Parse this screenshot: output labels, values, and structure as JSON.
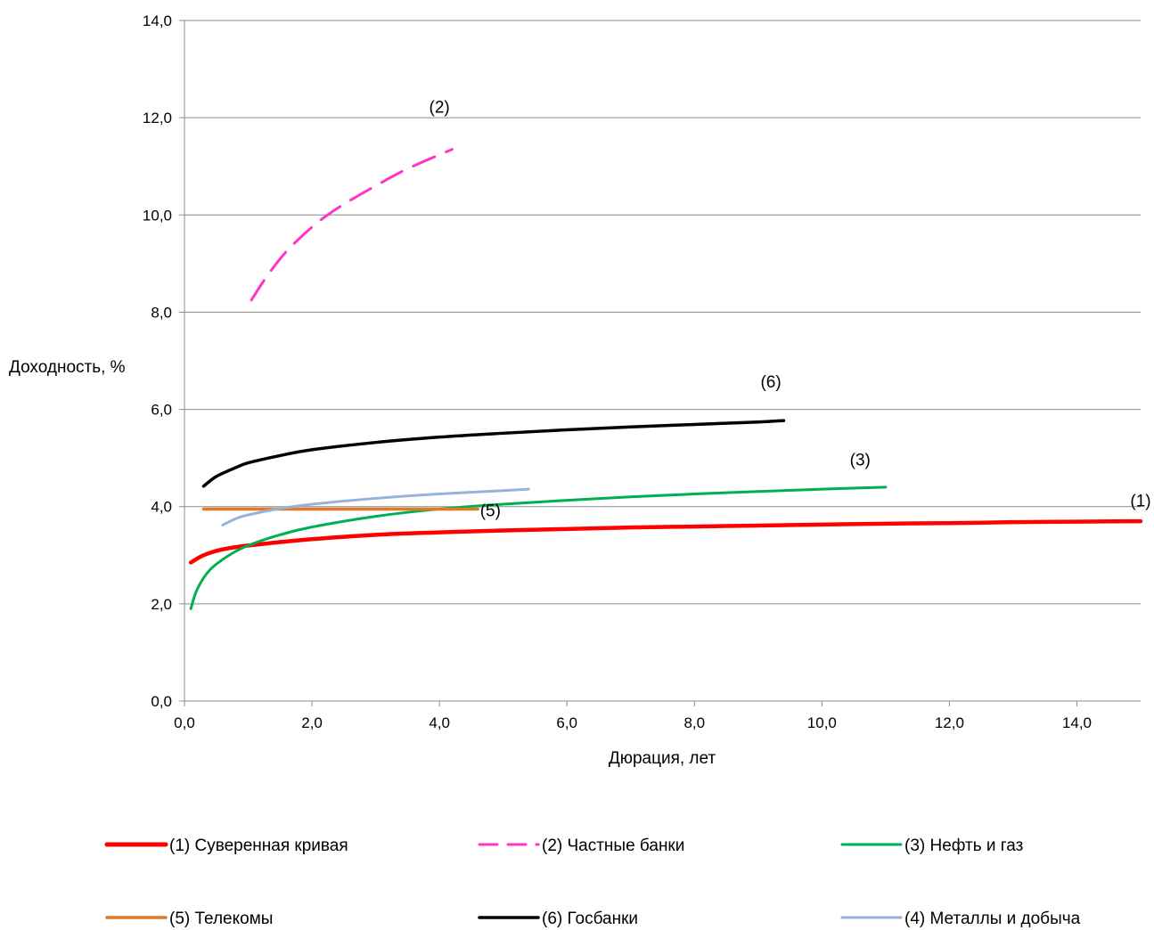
{
  "chart_data": {
    "type": "line",
    "xlabel": "Дюрация, лет",
    "ylabel": "Доходность, %",
    "xlim": [
      0,
      15
    ],
    "ylim": [
      0,
      14
    ],
    "xticks": [
      "0,0",
      "2,0",
      "4,0",
      "6,0",
      "8,0",
      "10,0",
      "12,0",
      "14,0"
    ],
    "yticks": [
      "0,0",
      "2,0",
      "4,0",
      "6,0",
      "8,0",
      "10,0",
      "12,0",
      "14,0"
    ],
    "grid": "horizontal",
    "legend_position": "bottom",
    "series": [
      {
        "name": "(1) Суверенная кривая",
        "color": "#ff0000",
        "dash": "solid",
        "x": [
          0.1,
          0.3,
          0.6,
          1.0,
          1.5,
          2.0,
          3.0,
          4.0,
          5.0,
          6.0,
          7.0,
          8.0,
          9.0,
          10.0,
          11.0,
          12.0,
          13.0,
          14.0,
          15.0
        ],
        "y": [
          2.85,
          3.0,
          3.12,
          3.2,
          3.27,
          3.33,
          3.42,
          3.47,
          3.51,
          3.54,
          3.57,
          3.59,
          3.61,
          3.63,
          3.65,
          3.66,
          3.68,
          3.69,
          3.7
        ],
        "annotation": "(1)"
      },
      {
        "name": "(2) Частные банки",
        "color": "#ff33cc",
        "dash": "dashed",
        "x": [
          1.05,
          1.3,
          1.6,
          2.0,
          2.3,
          2.6,
          3.0,
          3.5,
          4.2
        ],
        "y": [
          8.25,
          8.75,
          9.25,
          9.75,
          10.05,
          10.3,
          10.6,
          10.95,
          11.35
        ],
        "annotation": "(2)"
      },
      {
        "name": "(3) Нефть и газ",
        "color": "#00b050",
        "dash": "solid",
        "x": [
          0.1,
          0.2,
          0.4,
          0.7,
          1.0,
          1.5,
          2.0,
          3.0,
          4.0,
          5.0,
          6.0,
          7.0,
          8.0,
          9.0,
          10.0,
          11.0
        ],
        "y": [
          1.9,
          2.3,
          2.7,
          3.0,
          3.2,
          3.42,
          3.58,
          3.8,
          3.95,
          4.05,
          4.13,
          4.2,
          4.26,
          4.31,
          4.36,
          4.4
        ],
        "annotation": "(3)"
      },
      {
        "name": "(5) Телекомы",
        "color": "#e07a2a",
        "dash": "solid",
        "x": [
          0.3,
          4.6
        ],
        "y": [
          3.95,
          3.95
        ],
        "annotation": "(5)"
      },
      {
        "name": "(6) Госбанки",
        "color": "#000000",
        "dash": "solid",
        "x": [
          0.3,
          0.5,
          0.8,
          1.0,
          1.5,
          2.0,
          3.0,
          4.0,
          5.0,
          6.0,
          7.0,
          8.0,
          9.0,
          9.4
        ],
        "y": [
          4.42,
          4.62,
          4.8,
          4.9,
          5.05,
          5.17,
          5.32,
          5.43,
          5.51,
          5.58,
          5.64,
          5.69,
          5.74,
          5.77
        ],
        "annotation": "(6)"
      },
      {
        "name": "(4) Металлы и добыча",
        "color": "#95b3d7",
        "dash": "solid",
        "x": [
          0.6,
          0.8,
          1.0,
          1.5,
          2.0,
          3.0,
          4.0,
          5.0,
          5.4
        ],
        "y": [
          3.62,
          3.75,
          3.83,
          3.96,
          4.05,
          4.17,
          4.26,
          4.33,
          4.36
        ],
        "annotation": ""
      }
    ],
    "annotations": [
      {
        "text": "(2)",
        "x": 4.0,
        "y": 12.1
      },
      {
        "text": "(6)",
        "x": 9.2,
        "y": 6.45
      },
      {
        "text": "(3)",
        "x": 10.6,
        "y": 4.85
      },
      {
        "text": "(5)",
        "x": 4.8,
        "y": 3.8
      },
      {
        "text": "(1)",
        "x": 15.0,
        "y": 4.0
      }
    ]
  }
}
